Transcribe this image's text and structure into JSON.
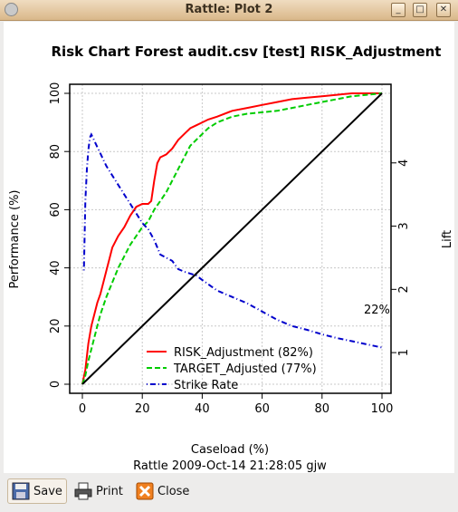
{
  "window": {
    "title": "Rattle: Plot 2",
    "controls": [
      "_",
      "□",
      "✕"
    ]
  },
  "chart_data": {
    "type": "line",
    "title": "Risk Chart Forest audit.csv [test] RISK_Adjustment",
    "xlabel": "Caseload (%)",
    "ylabel": "Performance (%)",
    "y2label": "Lift",
    "subtitle": "Rattle 2009-Oct-14 21:28:05 gjw",
    "xlim": [
      0,
      100
    ],
    "ylim": [
      0,
      100
    ],
    "y2lim": [
      0.5,
      5.1
    ],
    "xticks": [
      0,
      20,
      40,
      60,
      80,
      100
    ],
    "yticks": [
      0,
      20,
      40,
      60,
      80,
      100
    ],
    "y2ticks": [
      1,
      2,
      3,
      4
    ],
    "grid": true,
    "legend_position": "bottom-center",
    "end_label": "22%",
    "series": [
      {
        "name": "RISK_Adjustment (82%)",
        "color": "#ff0000",
        "dash": "solid",
        "axis": "left",
        "x": [
          0,
          1,
          2,
          3,
          4,
          5,
          6,
          7,
          8,
          9,
          10,
          11,
          12,
          14,
          16,
          18,
          20,
          22,
          23,
          24,
          25,
          26,
          28,
          30,
          32,
          34,
          36,
          38,
          40,
          42,
          45,
          50,
          55,
          60,
          65,
          70,
          75,
          80,
          85,
          90,
          95,
          100
        ],
        "y": [
          0,
          5,
          14,
          20,
          24,
          28,
          31,
          35,
          39,
          43,
          47,
          49,
          51,
          54,
          58,
          61,
          62,
          62,
          63,
          70,
          76,
          78,
          79,
          81,
          84,
          86,
          88,
          89,
          90,
          91,
          92,
          94,
          95,
          96,
          97,
          98,
          98.5,
          99,
          99.5,
          100,
          100,
          100
        ]
      },
      {
        "name": "TARGET_Adjusted (77%)",
        "color": "#00cc00",
        "dash": "dashed",
        "axis": "left",
        "x": [
          0,
          1,
          2,
          3,
          4,
          5,
          6,
          8,
          10,
          12,
          14,
          16,
          18,
          20,
          22,
          24,
          26,
          28,
          30,
          32,
          34,
          36,
          38,
          40,
          42,
          45,
          50,
          55,
          60,
          65,
          70,
          75,
          80,
          85,
          90,
          95,
          100
        ],
        "y": [
          0,
          3,
          8,
          12,
          16,
          20,
          24,
          30,
          35,
          40,
          44,
          48,
          51,
          54,
          56,
          60,
          63,
          66,
          70,
          74,
          78,
          82,
          84,
          86,
          88,
          90,
          92,
          93,
          93.5,
          94,
          95,
          96,
          97,
          98,
          99,
          99.5,
          100
        ]
      },
      {
        "name": "Strike Rate",
        "color": "#0000cc",
        "dash": "dotdash",
        "axis": "right",
        "x": [
          0.5,
          1,
          1.5,
          2,
          2.5,
          3,
          3.5,
          4,
          5,
          6,
          7,
          8,
          10,
          12,
          14,
          16,
          18,
          20,
          22,
          24,
          26,
          28,
          30,
          32,
          34,
          36,
          38,
          40,
          45,
          50,
          55,
          60,
          65,
          70,
          75,
          80,
          85,
          90,
          95,
          100
        ],
        "y": [
          2.3,
          3.4,
          3.9,
          4.2,
          4.4,
          4.45,
          4.4,
          4.35,
          4.25,
          4.15,
          4.05,
          3.95,
          3.8,
          3.65,
          3.5,
          3.35,
          3.2,
          3.05,
          2.95,
          2.78,
          2.55,
          2.5,
          2.45,
          2.32,
          2.28,
          2.25,
          2.22,
          2.15,
          1.98,
          1.88,
          1.78,
          1.65,
          1.52,
          1.42,
          1.36,
          1.29,
          1.23,
          1.18,
          1.13,
          1.08
        ]
      },
      {
        "name": "",
        "color": "#000000",
        "dash": "solid",
        "axis": "left",
        "x": [
          0,
          100
        ],
        "y": [
          0,
          100
        ]
      }
    ]
  },
  "buttons": {
    "save": "Save",
    "print": "Print",
    "close": "Close"
  }
}
